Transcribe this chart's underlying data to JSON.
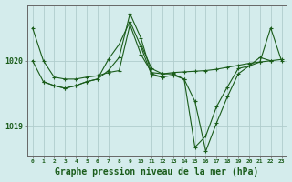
{
  "background_color": "#d4ecec",
  "grid_color": "#b0cccc",
  "line_color": "#1a5c1a",
  "marker_color": "#1a5c1a",
  "xlabel": "Graphe pression niveau de la mer (hPa)",
  "xlabel_fontsize": 7,
  "yticks": [
    1019,
    1020
  ],
  "xticks": [
    0,
    1,
    2,
    3,
    4,
    5,
    6,
    7,
    8,
    9,
    10,
    11,
    12,
    13,
    14,
    15,
    16,
    17,
    18,
    19,
    20,
    21,
    22,
    23
  ],
  "xlim": [
    -0.5,
    23.5
  ],
  "ylim": [
    1018.55,
    1020.85
  ],
  "series": [
    {
      "x": [
        0,
        1,
        2,
        3,
        4,
        5,
        6,
        7,
        8,
        9,
        10,
        11,
        12,
        13,
        14,
        15,
        16,
        17,
        18,
        19,
        20,
        21,
        22,
        23
      ],
      "y": [
        1020.5,
        1020.0,
        1019.75,
        1019.72,
        1019.72,
        1019.75,
        1019.77,
        1019.82,
        1019.85,
        1020.55,
        1020.1,
        1019.82,
        1019.8,
        1019.82,
        1019.83,
        1019.84,
        1019.85,
        1019.87,
        1019.9,
        1019.93,
        1019.96,
        1019.98,
        1020.0,
        1020.02
      ]
    },
    {
      "x": [
        0,
        1,
        2,
        3,
        4,
        5,
        6,
        7,
        8,
        9,
        10,
        11,
        12,
        13,
        14,
        15,
        16,
        17,
        18,
        19,
        20,
        21,
        22,
        23
      ],
      "y": [
        1020.0,
        1019.68,
        1019.62,
        1019.58,
        1019.62,
        1019.68,
        1019.72,
        1020.02,
        1020.25,
        1020.6,
        1020.22,
        1019.78,
        1019.75,
        1019.78,
        1019.72,
        1018.68,
        1018.85,
        1019.3,
        1019.6,
        1019.88,
        1019.92,
        1019.98,
        1020.5,
        1020.0
      ]
    },
    {
      "x": [
        1,
        2,
        3,
        4,
        5,
        6,
        7,
        8,
        9,
        10,
        11,
        12
      ],
      "y": [
        1019.68,
        1019.62,
        1019.58,
        1019.62,
        1019.68,
        1019.72,
        1019.85,
        1020.05,
        1020.72,
        1020.35,
        1019.8,
        1019.75
      ]
    },
    {
      "x": [
        10,
        11,
        12,
        13,
        14,
        15,
        16,
        17,
        18,
        19,
        20,
        21,
        22
      ],
      "y": [
        1020.25,
        1019.88,
        1019.8,
        1019.8,
        1019.72,
        1019.38,
        1018.62,
        1019.05,
        1019.45,
        1019.8,
        1019.92,
        1020.05,
        1020.0
      ]
    }
  ]
}
